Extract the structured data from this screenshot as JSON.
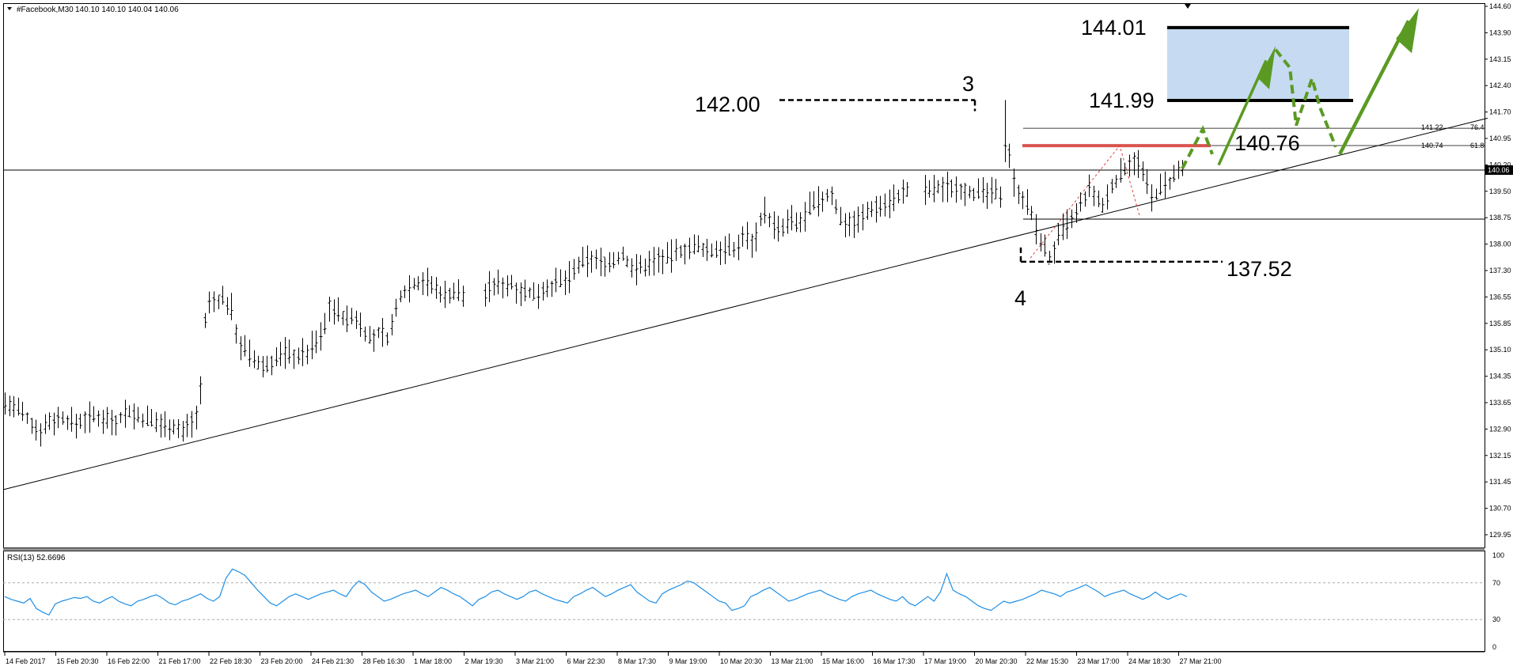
{
  "header": {
    "symbol": "#Facebook,M30",
    "ohlc": "140.10 140.10 140.04 140.06"
  },
  "colors": {
    "candle": "#000000",
    "rsi_line": "#1e8fe6",
    "target_box": "#c6daf1",
    "resistance": "#d9534f",
    "projection": "#5a9a23",
    "fib_dashed": "#e04040"
  },
  "chart_data": [
    {
      "type": "candlestick",
      "series": [
        {
          "name": "",
          "path_points": [
            [
              0,
              133.6
            ],
            [
              12,
              133.4
            ],
            [
              22,
              133.1
            ],
            [
              30,
              132.8
            ],
            [
              40,
              133.1
            ],
            [
              52,
              133.2
            ],
            [
              62,
              133.0
            ],
            [
              75,
              133.2
            ],
            [
              88,
              133.2
            ],
            [
              100,
              133.1
            ],
            [
              110,
              133.4
            ],
            [
              120,
              133.2
            ],
            [
              132,
              133.1
            ],
            [
              142,
              133.0
            ],
            [
              150,
              133.0
            ],
            [
              160,
              132.8
            ],
            [
              168,
              133.1
            ],
            [
              174,
              133.3
            ],
            [
              177,
              134.4
            ],
            [
              181,
              136.3
            ],
            [
              188,
              136.4
            ],
            [
              196,
              136.5
            ],
            [
              204,
              136.2
            ],
            [
              210,
              135.3
            ],
            [
              218,
              135.0
            ],
            [
              226,
              134.7
            ],
            [
              234,
              134.6
            ],
            [
              242,
              134.8
            ],
            [
              252,
              135.0
            ],
            [
              262,
              134.9
            ],
            [
              272,
              135.0
            ],
            [
              280,
              135.3
            ],
            [
              286,
              135.5
            ],
            [
              292,
              136.3
            ],
            [
              300,
              136.1
            ],
            [
              308,
              135.9
            ],
            [
              315,
              136.0
            ],
            [
              322,
              135.7
            ],
            [
              330,
              135.3
            ],
            [
              338,
              135.6
            ],
            [
              345,
              135.4
            ],
            [
              356,
              136.6
            ],
            [
              366,
              136.9
            ],
            [
              376,
              137.0
            ],
            [
              386,
              136.8
            ],
            [
              396,
              136.6
            ],
            [
              406,
              136.7
            ],
            [
              416,
              136.5
            ],
            [
              426,
              136.4
            ],
            [
              436,
              136.8
            ],
            [
              446,
              136.9
            ],
            [
              456,
              136.9
            ],
            [
              466,
              136.7
            ],
            [
              476,
              136.6
            ],
            [
              486,
              136.8
            ],
            [
              496,
              136.9
            ],
            [
              506,
              137.0
            ],
            [
              516,
              137.4
            ],
            [
              526,
              137.6
            ],
            [
              536,
              137.5
            ],
            [
              546,
              137.5
            ],
            [
              556,
              137.7
            ],
            [
              566,
              137.3
            ],
            [
              576,
              137.4
            ],
            [
              586,
              137.6
            ],
            [
              596,
              137.6
            ],
            [
              606,
              137.8
            ],
            [
              616,
              137.9
            ],
            [
              626,
              137.9
            ],
            [
              636,
              137.8
            ],
            [
              646,
              137.9
            ],
            [
              656,
              137.8
            ],
            [
              666,
              138.3
            ],
            [
              674,
              138.0
            ],
            [
              682,
              139.0
            ],
            [
              690,
              138.6
            ],
            [
              698,
              138.3
            ],
            [
              706,
              138.7
            ],
            [
              714,
              138.5
            ],
            [
              724,
              139.0
            ],
            [
              734,
              139.2
            ],
            [
              744,
              139.4
            ],
            [
              752,
              138.7
            ],
            [
              760,
              138.6
            ],
            [
              770,
              138.7
            ],
            [
              780,
              139.0
            ],
            [
              790,
              139.1
            ],
            [
              798,
              139.2
            ],
            [
              806,
              139.4
            ],
            [
              816,
              139.5
            ],
            [
              826,
              139.5
            ],
            [
              836,
              139.5
            ],
            [
              846,
              139.6
            ],
            [
              856,
              139.6
            ],
            [
              866,
              139.5
            ],
            [
              876,
              139.4
            ],
            [
              886,
              139.4
            ],
            [
              896,
              139.4
            ],
            [
              902,
              141.3
            ],
            [
              906,
              139.8
            ],
            [
              910,
              139.6
            ],
            [
              916,
              139.3
            ],
            [
              922,
              139.0
            ],
            [
              928,
              138.4
            ],
            [
              934,
              138.0
            ],
            [
              940,
              137.6
            ],
            [
              946,
              138.0
            ],
            [
              952,
              138.4
            ],
            [
              958,
              138.6
            ],
            [
              964,
              138.8
            ],
            [
              970,
              139.2
            ],
            [
              976,
              139.5
            ],
            [
              982,
              139.3
            ],
            [
              988,
              139.0
            ],
            [
              994,
              139.5
            ],
            [
              1000,
              139.8
            ],
            [
              1006,
              140.0
            ],
            [
              1012,
              140.3
            ],
            [
              1018,
              140.4
            ],
            [
              1026,
              139.8
            ],
            [
              1032,
              139.3
            ],
            [
              1036,
              139.4
            ],
            [
              1042,
              139.6
            ],
            [
              1048,
              139.7
            ],
            [
              1056,
              140.0
            ],
            [
              1064,
              140.1
            ]
          ]
        }
      ]
    },
    {
      "type": "annotations",
      "labels": {
        "p142": "142.00",
        "w3": "3",
        "p13752": "137.52",
        "w4": "4",
        "p14401": "144.01",
        "p14199": "141.99",
        "p14076": "140.76"
      },
      "fib_labels": {
        "f1": "141.22",
        "f1r": "76.4",
        "f2": "140.74",
        "f2r": "61.8"
      },
      "current_price": "140.06",
      "trendline": [
        [
          0,
          131.2
        ],
        [
          1880,
          141.5
        ]
      ],
      "level_lines": {
        "current": 140.06,
        "support": 138.7,
        "fib764": 141.22,
        "fib618": 140.74
      },
      "dashed_levels": {
        "high": 142.0,
        "low": 137.52
      },
      "target_box": [
        141.99,
        144.01
      ],
      "resistance": 140.76
    },
    {
      "type": "line",
      "title": "RSI(13) 52.6696",
      "ylim": [
        0,
        100
      ],
      "yticks": [
        "100",
        "70",
        "30",
        "0"
      ],
      "series": [
        {
          "name": "",
          "values": [
            55,
            52,
            50,
            48,
            53,
            42,
            38,
            35,
            47,
            50,
            52,
            54,
            53,
            55,
            50,
            48,
            52,
            55,
            50,
            47,
            45,
            50,
            52,
            55,
            57,
            53,
            48,
            46,
            50,
            52,
            55,
            58,
            53,
            50,
            55,
            75,
            85,
            82,
            78,
            70,
            62,
            55,
            48,
            45,
            50,
            55,
            58,
            55,
            52,
            55,
            58,
            60,
            62,
            58,
            55,
            65,
            72,
            68,
            60,
            55,
            50,
            52,
            55,
            58,
            60,
            62,
            58,
            55,
            60,
            65,
            62,
            58,
            55,
            50,
            45,
            52,
            55,
            60,
            62,
            58,
            55,
            52,
            55,
            60,
            62,
            58,
            55,
            52,
            50,
            48,
            55,
            58,
            62,
            65,
            60,
            55,
            58,
            62,
            65,
            68,
            60,
            55,
            50,
            48,
            58,
            62,
            65,
            68,
            72,
            70,
            65,
            60,
            55,
            50,
            48,
            40,
            42,
            45,
            55,
            58,
            62,
            65,
            60,
            55,
            50,
            52,
            55,
            58,
            60,
            62,
            58,
            55,
            52,
            50,
            55,
            58,
            60,
            62,
            58,
            55,
            52,
            50,
            55,
            48,
            45,
            50,
            55,
            50,
            60,
            80,
            62,
            58,
            55,
            50,
            45,
            42,
            40,
            45,
            50,
            48,
            50,
            52,
            55,
            58,
            62,
            60,
            58,
            55,
            60,
            62,
            65,
            68,
            64,
            60,
            55,
            58,
            60,
            62,
            58,
            55,
            52,
            55,
            60,
            55,
            52,
            55,
            58,
            55
          ]
        }
      ]
    }
  ],
  "x_axis_labels": [
    "14 Feb 2017",
    "15 Feb 20:30",
    "16 Feb 22:00",
    "21 Feb 17:00",
    "22 Feb 18:30",
    "23 Feb 20:00",
    "24 Feb 21:30",
    "28 Feb 16:30",
    "1 Mar 18:00",
    "2 Mar 19:30",
    "3 Mar 21:00",
    "6 Mar 22:30",
    "8 Mar 17:30",
    "9 Mar 19:00",
    "10 Mar 20:30",
    "13 Mar 21:00",
    "15 Mar 16:00",
    "16 Mar 17:30",
    "17 Mar 19:00",
    "20 Mar 20:30",
    "22 Mar 15:30",
    "23 Mar 17:00",
    "24 Mar 18:30",
    "27 Mar 21:00"
  ],
  "y_axis_labels": [
    "144.60",
    "143.90",
    "143.15",
    "142.40",
    "141.70",
    "140.95",
    "140.20",
    "139.50",
    "138.75",
    "138.00",
    "137.30",
    "136.55",
    "135.85",
    "135.10",
    "134.35",
    "133.65",
    "132.90",
    "132.15",
    "131.45",
    "130.70",
    "129.95"
  ]
}
